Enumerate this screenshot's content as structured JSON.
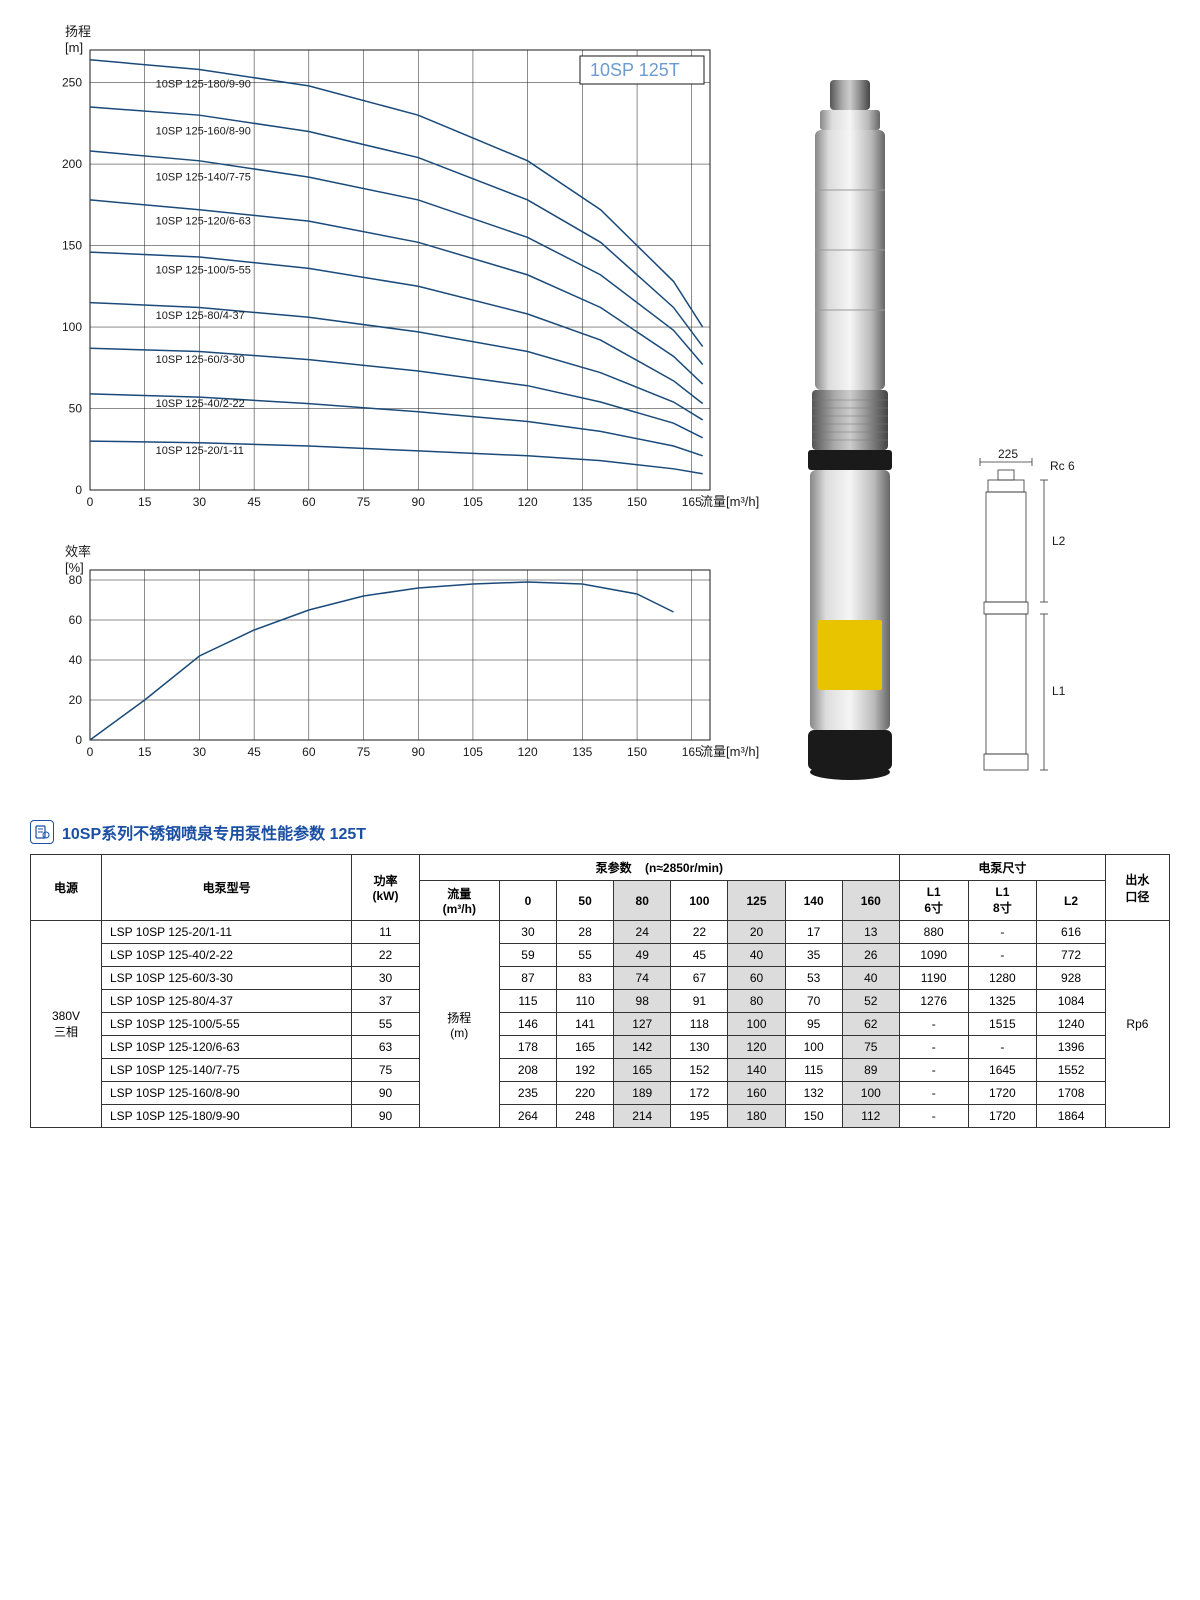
{
  "product_title": "10SP 125T",
  "chart1": {
    "type": "line",
    "x_axis_label": "流量[m³/h]",
    "y_axis_label_line1": "扬程",
    "y_axis_label_line2": "[m]",
    "xlim": [
      0,
      170
    ],
    "ylim": [
      0,
      270
    ],
    "xticks": [
      0,
      15,
      30,
      45,
      60,
      75,
      90,
      105,
      120,
      135,
      150,
      165
    ],
    "yticks": [
      0,
      50,
      100,
      150,
      200,
      250
    ],
    "grid_color": "#1a1a1a",
    "line_color": "#1a4a7a",
    "line_width": 1.5,
    "background_color": "#ffffff",
    "label_fontsize": 11,
    "tick_fontsize": 12,
    "curves": [
      {
        "label": "10SP 125-180/9-90",
        "label_x": 18,
        "label_y": 247,
        "points": [
          [
            0,
            264
          ],
          [
            30,
            258
          ],
          [
            60,
            248
          ],
          [
            90,
            230
          ],
          [
            120,
            202
          ],
          [
            140,
            172
          ],
          [
            160,
            128
          ],
          [
            168,
            100
          ]
        ]
      },
      {
        "label": "10SP 125-160/8-90",
        "label_x": 18,
        "label_y": 218,
        "points": [
          [
            0,
            235
          ],
          [
            30,
            230
          ],
          [
            60,
            220
          ],
          [
            90,
            204
          ],
          [
            120,
            178
          ],
          [
            140,
            152
          ],
          [
            160,
            112
          ],
          [
            168,
            88
          ]
        ]
      },
      {
        "label": "10SP 125-140/7-75",
        "label_x": 18,
        "label_y": 190,
        "points": [
          [
            0,
            208
          ],
          [
            30,
            202
          ],
          [
            60,
            192
          ],
          [
            90,
            178
          ],
          [
            120,
            155
          ],
          [
            140,
            132
          ],
          [
            160,
            98
          ],
          [
            168,
            77
          ]
        ]
      },
      {
        "label": "10SP 125-120/6-63",
        "label_x": 18,
        "label_y": 163,
        "points": [
          [
            0,
            178
          ],
          [
            30,
            172
          ],
          [
            60,
            165
          ],
          [
            90,
            152
          ],
          [
            120,
            132
          ],
          [
            140,
            112
          ],
          [
            160,
            82
          ],
          [
            168,
            65
          ]
        ]
      },
      {
        "label": "10SP 125-100/5-55",
        "label_x": 18,
        "label_y": 133,
        "points": [
          [
            0,
            146
          ],
          [
            30,
            143
          ],
          [
            60,
            136
          ],
          [
            90,
            125
          ],
          [
            120,
            108
          ],
          [
            140,
            92
          ],
          [
            160,
            67
          ],
          [
            168,
            53
          ]
        ]
      },
      {
        "label": "10SP 125-80/4-37",
        "label_x": 18,
        "label_y": 105,
        "points": [
          [
            0,
            115
          ],
          [
            30,
            112
          ],
          [
            60,
            106
          ],
          [
            90,
            97
          ],
          [
            120,
            85
          ],
          [
            140,
            72
          ],
          [
            160,
            54
          ],
          [
            168,
            43
          ]
        ]
      },
      {
        "label": "10SP 125-60/3-30",
        "label_x": 18,
        "label_y": 78,
        "points": [
          [
            0,
            87
          ],
          [
            30,
            85
          ],
          [
            60,
            80
          ],
          [
            90,
            73
          ],
          [
            120,
            64
          ],
          [
            140,
            54
          ],
          [
            160,
            41
          ],
          [
            168,
            32
          ]
        ]
      },
      {
        "label": "10SP 125-40/2-22",
        "label_x": 18,
        "label_y": 51,
        "points": [
          [
            0,
            59
          ],
          [
            30,
            57
          ],
          [
            60,
            53
          ],
          [
            90,
            48
          ],
          [
            120,
            42
          ],
          [
            140,
            36
          ],
          [
            160,
            27
          ],
          [
            168,
            21
          ]
        ]
      },
      {
        "label": "10SP 125-20/1-11",
        "label_x": 18,
        "label_y": 22,
        "points": [
          [
            0,
            30
          ],
          [
            30,
            29
          ],
          [
            60,
            27
          ],
          [
            90,
            24
          ],
          [
            120,
            21
          ],
          [
            140,
            18
          ],
          [
            160,
            13
          ],
          [
            168,
            10
          ]
        ]
      }
    ]
  },
  "chart2": {
    "type": "line",
    "x_axis_label": "流量[m³/h]",
    "y_axis_label_line1": "效率",
    "y_axis_label_line2": "[%]",
    "xlim": [
      0,
      170
    ],
    "ylim": [
      0,
      85
    ],
    "xticks": [
      0,
      15,
      30,
      45,
      60,
      75,
      90,
      105,
      120,
      135,
      150,
      165
    ],
    "yticks": [
      0,
      20,
      40,
      60,
      80
    ],
    "grid_color": "#1a1a1a",
    "line_color": "#1a4a7a",
    "line_width": 1.5,
    "curve": {
      "points": [
        [
          0,
          0
        ],
        [
          15,
          20
        ],
        [
          30,
          42
        ],
        [
          45,
          55
        ],
        [
          60,
          65
        ],
        [
          75,
          72
        ],
        [
          90,
          76
        ],
        [
          105,
          78
        ],
        [
          120,
          79
        ],
        [
          135,
          78
        ],
        [
          150,
          73
        ],
        [
          160,
          64
        ]
      ]
    }
  },
  "dimension_diagram": {
    "width_label": "225",
    "port_label": "Rc 6",
    "h1_label": "L1",
    "h2_label": "L2"
  },
  "section_title": "10SP系列不锈钢喷泉专用泵性能参数  125T",
  "table": {
    "headers": {
      "power_supply": "电源",
      "model": "电泵型号",
      "power_kw": "功率\n(kW)",
      "pump_params": "泵参数",
      "rpm": "(n≈2850r/min)",
      "flow": "流量\n(m³/h)",
      "head_m": "扬程\n(m)",
      "dims": "电泵尺寸",
      "l1_6": "L1\n6寸",
      "l1_8": "L1\n8寸",
      "l2": "L2",
      "outlet": "出水\n口径"
    },
    "flow_cols": [
      "0",
      "50",
      "80",
      "100",
      "125",
      "140",
      "160"
    ],
    "power_supply_value": "380V\n三相",
    "outlet_value": "Rp6",
    "alt_col_indexes": [
      2,
      4,
      6
    ],
    "rows": [
      {
        "model": "LSP 10SP 125-20/1-11",
        "kw": "11",
        "heads": [
          "30",
          "28",
          "24",
          "22",
          "20",
          "17",
          "13"
        ],
        "l1_6": "880",
        "l1_8": "-",
        "l2": "616"
      },
      {
        "model": "LSP 10SP 125-40/2-22",
        "kw": "22",
        "heads": [
          "59",
          "55",
          "49",
          "45",
          "40",
          "35",
          "26"
        ],
        "l1_6": "1090",
        "l1_8": "-",
        "l2": "772"
      },
      {
        "model": "LSP 10SP 125-60/3-30",
        "kw": "30",
        "heads": [
          "87",
          "83",
          "74",
          "67",
          "60",
          "53",
          "40"
        ],
        "l1_6": "1190",
        "l1_8": "1280",
        "l2": "928"
      },
      {
        "model": "LSP 10SP 125-80/4-37",
        "kw": "37",
        "heads": [
          "115",
          "110",
          "98",
          "91",
          "80",
          "70",
          "52"
        ],
        "l1_6": "1276",
        "l1_8": "1325",
        "l2": "1084"
      },
      {
        "model": "LSP 10SP 125-100/5-55",
        "kw": "55",
        "heads": [
          "146",
          "141",
          "127",
          "118",
          "100",
          "95",
          "62"
        ],
        "l1_6": "-",
        "l1_8": "1515",
        "l2": "1240"
      },
      {
        "model": "LSP 10SP 125-120/6-63",
        "kw": "63",
        "heads": [
          "178",
          "165",
          "142",
          "130",
          "120",
          "100",
          "75"
        ],
        "l1_6": "-",
        "l1_8": "-",
        "l2": "1396"
      },
      {
        "model": "LSP 10SP 125-140/7-75",
        "kw": "75",
        "heads": [
          "208",
          "192",
          "165",
          "152",
          "140",
          "115",
          "89"
        ],
        "l1_6": "-",
        "l1_8": "1645",
        "l2": "1552"
      },
      {
        "model": "LSP 10SP 125-160/8-90",
        "kw": "90",
        "heads": [
          "235",
          "220",
          "189",
          "172",
          "160",
          "132",
          "100"
        ],
        "l1_6": "-",
        "l1_8": "1720",
        "l2": "1708"
      },
      {
        "model": "LSP 10SP 125-180/9-90",
        "kw": "90",
        "heads": [
          "264",
          "248",
          "214",
          "195",
          "180",
          "150",
          "112"
        ],
        "l1_6": "-",
        "l1_8": "1720",
        "l2": "1864"
      }
    ]
  }
}
